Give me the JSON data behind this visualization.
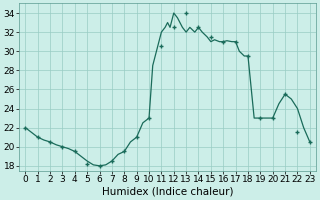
{
  "x_markers": [
    0,
    1,
    2,
    3,
    4,
    5,
    6,
    7,
    8,
    9,
    10,
    11,
    12,
    13,
    14,
    15,
    16,
    17,
    18,
    19,
    20,
    21,
    22,
    23
  ],
  "y_markers": [
    22,
    21,
    20.5,
    20,
    19.5,
    18.2,
    18,
    18.5,
    19.5,
    21,
    23,
    30.5,
    32.5,
    34,
    32.5,
    31.5,
    31,
    31,
    29.5,
    23,
    23,
    25.5,
    21.5,
    20.5
  ],
  "x_line": [
    0,
    0.5,
    1,
    1.5,
    2,
    2.5,
    3,
    3.5,
    4,
    4.5,
    5,
    5.5,
    6,
    6.5,
    7,
    7.5,
    8,
    8.5,
    9,
    9.5,
    10,
    10.3,
    10.7,
    11,
    11.3,
    11.5,
    11.7,
    12,
    12.3,
    12.7,
    13,
    13.3,
    13.7,
    14,
    14.3,
    14.7,
    15,
    15.3,
    15.7,
    16,
    16.3,
    16.7,
    17,
    17.3,
    17.7,
    18,
    18.5,
    19,
    19.5,
    20,
    20.5,
    21,
    21.5,
    22,
    22.5,
    23
  ],
  "y_line": [
    22,
    21.5,
    21,
    20.7,
    20.5,
    20.2,
    20,
    19.8,
    19.5,
    19,
    18.5,
    18.1,
    18,
    18.1,
    18.5,
    19.2,
    19.5,
    20.5,
    21,
    22.5,
    23,
    28.5,
    30.5,
    32,
    32.5,
    33,
    32.5,
    34,
    33.5,
    32.5,
    32,
    32.5,
    32,
    32.5,
    32,
    31.5,
    31,
    31.2,
    31.0,
    31.0,
    31.1,
    31.0,
    31.0,
    30,
    29.5,
    29.5,
    23,
    23,
    23,
    23,
    24.5,
    25.5,
    25.0,
    24.0,
    22,
    20.5
  ],
  "line_color": "#1a6b5a",
  "marker_color": "#1a6b5a",
  "marker": "+",
  "marker_size": 3.5,
  "bg_color": "#cceee8",
  "grid_color": "#99ccc4",
  "ylim": [
    17.5,
    35
  ],
  "xlim": [
    -0.5,
    23.5
  ],
  "yticks": [
    18,
    20,
    22,
    24,
    26,
    28,
    30,
    32,
    34
  ],
  "xticks": [
    0,
    1,
    2,
    3,
    4,
    5,
    6,
    7,
    8,
    9,
    10,
    11,
    12,
    13,
    14,
    15,
    16,
    17,
    18,
    19,
    20,
    21,
    22,
    23
  ],
  "xlabel": "Humidex (Indice chaleur)",
  "xlabel_fontsize": 7.5,
  "tick_fontsize": 6.5,
  "linewidth": 0.9
}
